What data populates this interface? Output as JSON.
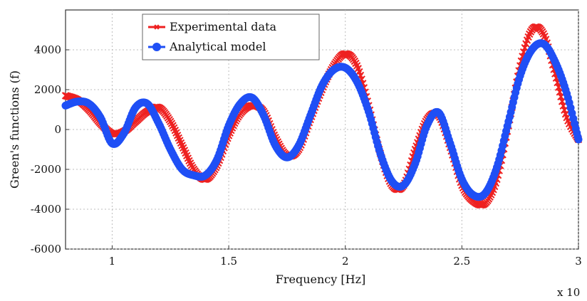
{
  "chart_data": {
    "type": "line",
    "title": "",
    "xlabel": "Frequency [Hz]",
    "ylabel": "Green's functions (f)",
    "x_multiplier_label": "x 10",
    "xlim": [
      0.8,
      3.0
    ],
    "ylim": [
      -6000,
      6000
    ],
    "xticks": [
      1,
      1.5,
      2,
      2.5,
      3
    ],
    "xtick_labels": [
      "1",
      "1.5",
      "2",
      "2.5",
      "3"
    ],
    "yticks": [
      -6000,
      -4000,
      -2000,
      0,
      2000,
      4000
    ],
    "ytick_labels": [
      "-6000",
      "-4000",
      "-2000",
      "0",
      "2000",
      "4000"
    ],
    "grid": true,
    "legend_position": "top-left",
    "series": [
      {
        "name": "Experimental data",
        "color": "#ee2020",
        "marker": "x",
        "x": [
          0.8,
          0.85,
          0.9,
          0.95,
          1.0,
          1.05,
          1.1,
          1.15,
          1.2,
          1.25,
          1.3,
          1.35,
          1.4,
          1.45,
          1.5,
          1.55,
          1.6,
          1.65,
          1.7,
          1.75,
          1.8,
          1.85,
          1.9,
          1.95,
          2.0,
          2.05,
          2.1,
          2.15,
          2.2,
          2.25,
          2.3,
          2.35,
          2.4,
          2.45,
          2.5,
          2.55,
          2.6,
          2.65,
          2.7,
          2.75,
          2.8,
          2.85,
          2.9,
          2.95,
          3.0
        ],
        "y": [
          1700,
          1500,
          1000,
          300,
          -200,
          -100,
          400,
          900,
          1100,
          400,
          -800,
          -2000,
          -2500,
          -1800,
          -300,
          800,
          1200,
          900,
          -400,
          -1300,
          -1000,
          500,
          2000,
          3200,
          3800,
          3200,
          1200,
          -1200,
          -2800,
          -2800,
          -1000,
          500,
          700,
          -900,
          -2800,
          -3600,
          -3700,
          -2500,
          200,
          3200,
          5000,
          4800,
          2800,
          600,
          -500
        ]
      },
      {
        "name": "Analytical model",
        "color": "#1f4ff5",
        "marker": "o",
        "x": [
          0.8,
          0.85,
          0.9,
          0.95,
          1.0,
          1.05,
          1.1,
          1.15,
          1.2,
          1.25,
          1.3,
          1.35,
          1.4,
          1.45,
          1.5,
          1.55,
          1.6,
          1.65,
          1.7,
          1.75,
          1.8,
          1.85,
          1.9,
          1.95,
          2.0,
          2.05,
          2.1,
          2.15,
          2.2,
          2.25,
          2.3,
          2.35,
          2.4,
          2.45,
          2.5,
          2.55,
          2.6,
          2.65,
          2.7,
          2.75,
          2.8,
          2.85,
          2.9,
          2.95,
          3.0
        ],
        "y": [
          1200,
          1400,
          1300,
          600,
          -700,
          -200,
          1100,
          1300,
          300,
          -1000,
          -2000,
          -2300,
          -2300,
          -1500,
          200,
          1300,
          1600,
          700,
          -800,
          -1400,
          -800,
          700,
          2200,
          3000,
          3100,
          2400,
          900,
          -1200,
          -2600,
          -2800,
          -1700,
          200,
          850,
          -700,
          -2500,
          -3300,
          -3200,
          -1900,
          400,
          2700,
          4000,
          4300,
          3400,
          1800,
          -500
        ]
      }
    ]
  }
}
